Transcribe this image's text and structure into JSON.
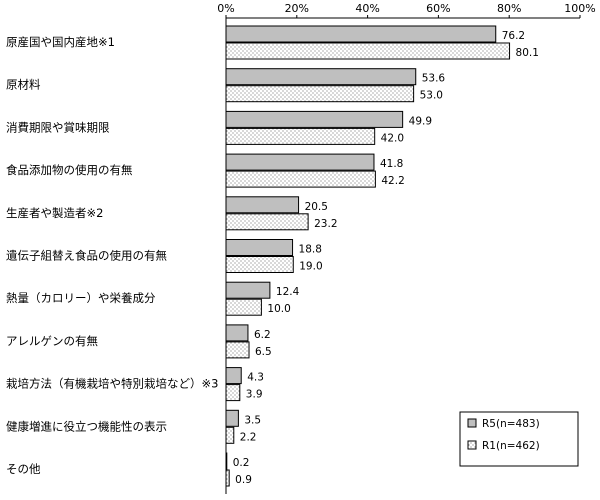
{
  "chart_data": {
    "type": "bar",
    "orientation": "horizontal",
    "categories": [
      "原産国や国内産地※1",
      "原材料",
      "消費期限や賞味期限",
      "食品添加物の使用の有無",
      "生産者や製造者※2",
      "遺伝子組替え食品の使用の有無",
      "熱量（カロリー）や栄養成分",
      "アレルゲンの有無",
      "栽培方法（有機栽培や特別栽培など）※3",
      "健康増進に役立つ機能性の表示",
      "その他"
    ],
    "series": [
      {
        "name": "R5(n=483)",
        "values": [
          76.2,
          53.6,
          49.9,
          41.8,
          20.5,
          18.8,
          12.4,
          6.2,
          4.3,
          3.5,
          0.2
        ],
        "labels": [
          "76.2",
          "53.6",
          "49.9",
          "41.8",
          "20.5",
          "18.8",
          "12.4",
          "6.2",
          "4.3",
          "3.5",
          "0.2"
        ],
        "fill": "solid-gray",
        "color": "#bfbfbf"
      },
      {
        "name": "R1(n=462)",
        "values": [
          80.1,
          53.0,
          42.0,
          42.2,
          23.2,
          19.0,
          10.0,
          6.5,
          3.9,
          2.2,
          0.9
        ],
        "labels": [
          "80.1",
          "53.0",
          "42.0",
          "42.2",
          "23.2",
          "19.0",
          "10.0",
          "6.5",
          "3.9",
          "2.2",
          "0.9"
        ],
        "fill": "dotted",
        "color": "#ffffff"
      }
    ],
    "x_ticks": [
      "0%",
      "20%",
      "40%",
      "60%",
      "80%",
      "100%"
    ],
    "xlim": [
      0,
      100
    ],
    "x_axis_position": "top",
    "grid": false,
    "legend_position": "bottom-right"
  }
}
